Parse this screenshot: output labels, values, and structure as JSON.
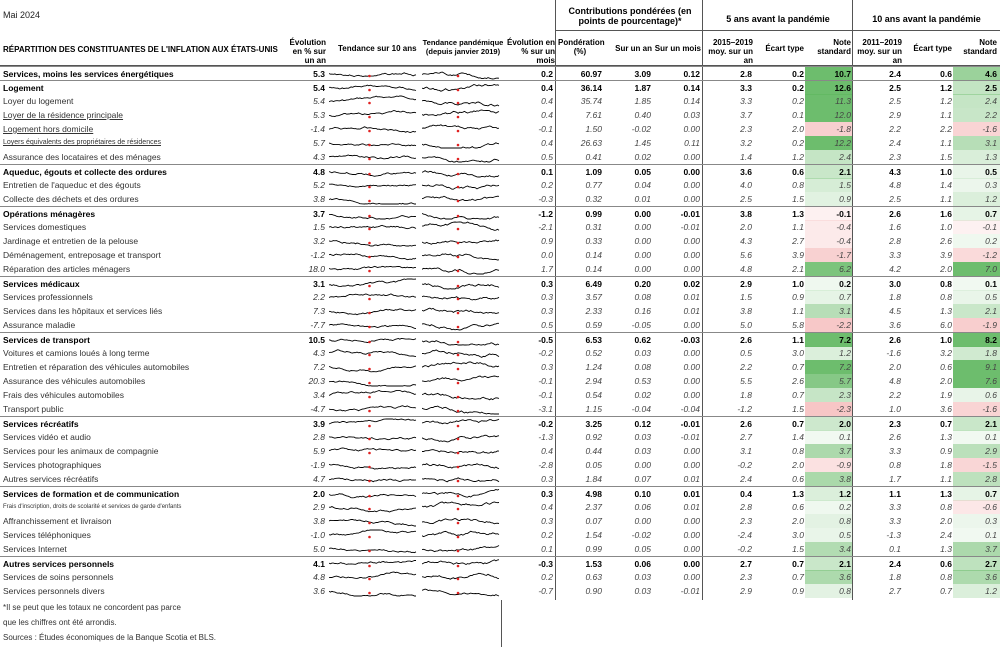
{
  "date_label": "Mai 2024",
  "headers": {
    "category": "RÉPARTITION DES CONSTITUANTES DE L'INFLATION AUX ÉTATS-UNIS",
    "evol_yoy": "Évolution en % sur un an",
    "trend10": "Tendance sur 10 ans",
    "trend_pandemic": "Tendance pandémique (depuis janvier 2019)",
    "evol_mom": "Évolution en % sur un mois",
    "contrib_group": "Contributions pondérées (en points de pourcentage)*",
    "weight": "Pondération (%)",
    "sur_un_an": "Sur un an",
    "sur_un_mois": "Sur un mois",
    "group5": "5 ans avant la pandémie",
    "avg5": "2015–2019 moy. sur un an",
    "std": "Écart type",
    "score": "Note standard",
    "group10": "10 ans avant la pandémie",
    "avg10": "2011–2019 moy. sur un an"
  },
  "colors": {
    "pos": "#62b862",
    "neg": "#e86060",
    "spark": "#000000",
    "spark_dot": "#e02020"
  },
  "rows": [
    {
      "label": "Services, moins les services énergétiques",
      "t": "major",
      "yoy": "5.3",
      "mom": "0.2",
      "w": "60.97",
      "cy": "3.09",
      "cm": "0.12",
      "a5": "2.8",
      "s5": "0.2",
      "n5": "10.7",
      "a10": "2.4",
      "s10": "0.6",
      "n10": "4.6",
      "z5": 10.7,
      "z10": 4.6
    },
    {
      "label": "Logement",
      "t": "major",
      "yoy": "5.4",
      "mom": "0.4",
      "w": "36.14",
      "cy": "1.87",
      "cm": "0.14",
      "a5": "3.3",
      "s5": "0.2",
      "n5": "12.6",
      "a10": "2.5",
      "s10": "1.2",
      "n10": "2.5",
      "z5": 12.6,
      "z10": 2.5
    },
    {
      "label": "Loyer du logement",
      "t": "sub",
      "yoy": "5.4",
      "mom": "0.4",
      "w": "35.74",
      "cy": "1.85",
      "cm": "0.14",
      "a5": "3.3",
      "s5": "0.2",
      "n5": "11.3",
      "a10": "2.5",
      "s10": "1.2",
      "n10": "2.4",
      "z5": 11.3,
      "z10": 2.4
    },
    {
      "label": "Loyer de la résidence principale",
      "t": "sub ul",
      "yoy": "5.3",
      "mom": "0.4",
      "w": "7.61",
      "cy": "0.40",
      "cm": "0.03",
      "a5": "3.7",
      "s5": "0.1",
      "n5": "12.0",
      "a10": "2.9",
      "s10": "1.1",
      "n10": "2.2",
      "z5": 12.0,
      "z10": 2.2
    },
    {
      "label": "Logement hors domicile",
      "t": "sub ul",
      "yoy": "-1.4",
      "mom": "-0.1",
      "w": "1.50",
      "cy": "-0.02",
      "cm": "0.00",
      "a5": "2.3",
      "s5": "2.0",
      "n5": "-1.8",
      "a10": "2.2",
      "s10": "2.2",
      "n10": "-1.6",
      "z5": -1.8,
      "z10": -1.6
    },
    {
      "label": "Loyers équivalents des propriétaires de résidences",
      "t": "sub ul small",
      "yoy": "5.7",
      "mom": "0.4",
      "w": "26.63",
      "cy": "1.45",
      "cm": "0.11",
      "a5": "3.2",
      "s5": "0.2",
      "n5": "12.2",
      "a10": "2.4",
      "s10": "1.1",
      "n10": "3.1",
      "z5": 12.2,
      "z10": 3.1
    },
    {
      "label": "Assurance des locataires et des ménages",
      "t": "sub",
      "yoy": "4.3",
      "mom": "0.5",
      "w": "0.41",
      "cy": "0.02",
      "cm": "0.00",
      "a5": "1.4",
      "s5": "1.2",
      "n5": "2.4",
      "a10": "2.3",
      "s10": "1.5",
      "n10": "1.3",
      "z5": 2.4,
      "z10": 1.3
    },
    {
      "label": "Aqueduc, égouts et collecte des ordures",
      "t": "major",
      "yoy": "4.8",
      "mom": "0.1",
      "w": "1.09",
      "cy": "0.05",
      "cm": "0.00",
      "a5": "3.6",
      "s5": "0.6",
      "n5": "2.1",
      "a10": "4.3",
      "s10": "1.0",
      "n10": "0.5",
      "z5": 2.1,
      "z10": 0.5
    },
    {
      "label": "Entretien de l'aqueduc et des égouts",
      "t": "sub",
      "yoy": "5.2",
      "mom": "0.2",
      "w": "0.77",
      "cy": "0.04",
      "cm": "0.00",
      "a5": "4.0",
      "s5": "0.8",
      "n5": "1.5",
      "a10": "4.8",
      "s10": "1.4",
      "n10": "0.3",
      "z5": 1.5,
      "z10": 0.3
    },
    {
      "label": "Collecte des déchets et des ordures",
      "t": "sub",
      "yoy": "3.8",
      "mom": "-0.3",
      "w": "0.32",
      "cy": "0.01",
      "cm": "0.00",
      "a5": "2.5",
      "s5": "1.5",
      "n5": "0.9",
      "a10": "2.5",
      "s10": "1.1",
      "n10": "1.2",
      "z5": 0.9,
      "z10": 1.2
    },
    {
      "label": "Opérations ménagères",
      "t": "major",
      "yoy": "3.7",
      "mom": "-1.2",
      "w": "0.99",
      "cy": "0.00",
      "cm": "-0.01",
      "a5": "3.8",
      "s5": "1.3",
      "n5": "-0.1",
      "a10": "2.6",
      "s10": "1.6",
      "n10": "0.7",
      "z5": -0.1,
      "z10": 0.7
    },
    {
      "label": "Services domestiques",
      "t": "sub",
      "yoy": "1.5",
      "mom": "-2.1",
      "w": "0.31",
      "cy": "0.00",
      "cm": "-0.01",
      "a5": "2.0",
      "s5": "1.1",
      "n5": "-0.4",
      "a10": "1.6",
      "s10": "1.0",
      "n10": "-0.1",
      "z5": -0.4,
      "z10": -0.1
    },
    {
      "label": "Jardinage et entretien de la pelouse",
      "t": "sub",
      "yoy": "3.2",
      "mom": "0.9",
      "w": "0.33",
      "cy": "0.00",
      "cm": "0.00",
      "a5": "4.3",
      "s5": "2.7",
      "n5": "-0.4",
      "a10": "2.8",
      "s10": "2.6",
      "n10": "0.2",
      "z5": -0.4,
      "z10": 0.2
    },
    {
      "label": "Déménagement, entreposage et transport",
      "t": "sub",
      "yoy": "-1.2",
      "mom": "0.0",
      "w": "0.14",
      "cy": "0.00",
      "cm": "0.00",
      "a5": "5.6",
      "s5": "3.9",
      "n5": "-1.7",
      "a10": "3.3",
      "s10": "3.9",
      "n10": "-1.2",
      "z5": -1.7,
      "z10": -1.2
    },
    {
      "label": "Réparation des articles ménagers",
      "t": "sub",
      "yoy": "18.0",
      "mom": "1.7",
      "w": "0.14",
      "cy": "0.00",
      "cm": "0.00",
      "a5": "4.8",
      "s5": "2.1",
      "n5": "6.2",
      "a10": "4.2",
      "s10": "2.0",
      "n10": "7.0",
      "z5": 6.2,
      "z10": 7.0
    },
    {
      "label": "Services médicaux",
      "t": "major",
      "yoy": "3.1",
      "mom": "0.3",
      "w": "6.49",
      "cy": "0.20",
      "cm": "0.02",
      "a5": "2.9",
      "s5": "1.0",
      "n5": "0.2",
      "a10": "3.0",
      "s10": "0.8",
      "n10": "0.1",
      "z5": 0.2,
      "z10": 0.1
    },
    {
      "label": "Services professionnels",
      "t": "sub",
      "yoy": "2.2",
      "mom": "0.3",
      "w": "3.57",
      "cy": "0.08",
      "cm": "0.01",
      "a5": "1.5",
      "s5": "0.9",
      "n5": "0.7",
      "a10": "1.8",
      "s10": "0.8",
      "n10": "0.5",
      "z5": 0.7,
      "z10": 0.5
    },
    {
      "label": "Services dans les hôpitaux et services liés",
      "t": "sub",
      "yoy": "7.3",
      "mom": "0.3",
      "w": "2.33",
      "cy": "0.16",
      "cm": "0.01",
      "a5": "3.8",
      "s5": "1.1",
      "n5": "3.1",
      "a10": "4.5",
      "s10": "1.3",
      "n10": "2.1",
      "z5": 3.1,
      "z10": 2.1
    },
    {
      "label": "Assurance maladie",
      "t": "sub",
      "yoy": "-7.7",
      "mom": "0.5",
      "w": "0.59",
      "cy": "-0.05",
      "cm": "0.00",
      "a5": "5.0",
      "s5": "5.8",
      "n5": "-2.2",
      "a10": "3.6",
      "s10": "6.0",
      "n10": "-1.9",
      "z5": -2.2,
      "z10": -1.9
    },
    {
      "label": "Services de transport",
      "t": "major",
      "yoy": "10.5",
      "mom": "-0.5",
      "w": "6.53",
      "cy": "0.62",
      "cm": "-0.03",
      "a5": "2.6",
      "s5": "1.1",
      "n5": "7.2",
      "a10": "2.6",
      "s10": "1.0",
      "n10": "8.2",
      "z5": 7.2,
      "z10": 8.2
    },
    {
      "label": "Voitures et camions loués à long terme",
      "t": "sub",
      "yoy": "4.3",
      "mom": "-0.2",
      "w": "0.52",
      "cy": "0.03",
      "cm": "0.00",
      "a5": "0.5",
      "s5": "3.0",
      "n5": "1.2",
      "a10": "-1.6",
      "s10": "3.2",
      "n10": "1.8",
      "z5": 1.2,
      "z10": 1.8
    },
    {
      "label": "Entretien et réparation des véhicules automobiles",
      "t": "sub",
      "yoy": "7.2",
      "mom": "0.3",
      "w": "1.24",
      "cy": "0.08",
      "cm": "0.00",
      "a5": "2.2",
      "s5": "0.7",
      "n5": "7.2",
      "a10": "2.0",
      "s10": "0.6",
      "n10": "9.1",
      "z5": 7.2,
      "z10": 9.1
    },
    {
      "label": "Assurance des véhicules automobiles",
      "t": "sub",
      "yoy": "20.3",
      "mom": "-0.1",
      "w": "2.94",
      "cy": "0.53",
      "cm": "0.00",
      "a5": "5.5",
      "s5": "2.6",
      "n5": "5.7",
      "a10": "4.8",
      "s10": "2.0",
      "n10": "7.6",
      "z5": 5.7,
      "z10": 7.6
    },
    {
      "label": "Frais des véhicules automobiles",
      "t": "sub",
      "yoy": "3.4",
      "mom": "-0.1",
      "w": "0.54",
      "cy": "0.02",
      "cm": "0.00",
      "a5": "1.8",
      "s5": "0.7",
      "n5": "2.3",
      "a10": "2.2",
      "s10": "1.9",
      "n10": "0.6",
      "z5": 2.3,
      "z10": 0.6
    },
    {
      "label": "Transport public",
      "t": "sub",
      "yoy": "-4.7",
      "mom": "-3.1",
      "w": "1.15",
      "cy": "-0.04",
      "cm": "-0.04",
      "a5": "-1.2",
      "s5": "1.5",
      "n5": "-2.3",
      "a10": "1.0",
      "s10": "3.6",
      "n10": "-1.6",
      "z5": -2.3,
      "z10": -1.6
    },
    {
      "label": "Services récréatifs",
      "t": "major",
      "yoy": "3.9",
      "mom": "-0.2",
      "w": "3.25",
      "cy": "0.12",
      "cm": "-0.01",
      "a5": "2.6",
      "s5": "0.7",
      "n5": "2.0",
      "a10": "2.3",
      "s10": "0.7",
      "n10": "2.1",
      "z5": 2.0,
      "z10": 2.1
    },
    {
      "label": "Services vidéo et audio",
      "t": "sub",
      "yoy": "2.8",
      "mom": "-1.3",
      "w": "0.92",
      "cy": "0.03",
      "cm": "-0.01",
      "a5": "2.7",
      "s5": "1.4",
      "n5": "0.1",
      "a10": "2.6",
      "s10": "1.3",
      "n10": "0.1",
      "z5": 0.1,
      "z10": 0.1
    },
    {
      "label": "Services pour les animaux de compagnie",
      "t": "sub",
      "yoy": "5.9",
      "mom": "0.4",
      "w": "0.44",
      "cy": "0.03",
      "cm": "0.00",
      "a5": "3.1",
      "s5": "0.8",
      "n5": "3.7",
      "a10": "3.3",
      "s10": "0.9",
      "n10": "2.9",
      "z5": 3.7,
      "z10": 2.9
    },
    {
      "label": "Services photographiques",
      "t": "sub",
      "yoy": "-1.9",
      "mom": "-2.8",
      "w": "0.05",
      "cy": "0.00",
      "cm": "0.00",
      "a5": "-0.2",
      "s5": "2.0",
      "n5": "-0.9",
      "a10": "0.8",
      "s10": "1.8",
      "n10": "-1.5",
      "z5": -0.9,
      "z10": -1.5
    },
    {
      "label": "Autres services récréatifs",
      "t": "sub",
      "yoy": "4.7",
      "mom": "0.3",
      "w": "1.84",
      "cy": "0.07",
      "cm": "0.01",
      "a5": "2.4",
      "s5": "0.6",
      "n5": "3.8",
      "a10": "1.7",
      "s10": "1.1",
      "n10": "2.8",
      "z5": 3.8,
      "z10": 2.8
    },
    {
      "label": "Services de formation et de communication",
      "t": "major",
      "yoy": "2.0",
      "mom": "0.3",
      "w": "4.98",
      "cy": "0.10",
      "cm": "0.01",
      "a5": "0.4",
      "s5": "1.3",
      "n5": "1.2",
      "a10": "1.1",
      "s10": "1.3",
      "n10": "0.7",
      "z5": 1.2,
      "z10": 0.7
    },
    {
      "label": "Frais d'inscription, droits de scolarité et services de garde d'enfants",
      "t": "sub tiny",
      "yoy": "2.9",
      "mom": "0.4",
      "w": "2.37",
      "cy": "0.06",
      "cm": "0.01",
      "a5": "2.8",
      "s5": "0.6",
      "n5": "0.2",
      "a10": "3.3",
      "s10": "0.8",
      "n10": "-0.6",
      "z5": 0.2,
      "z10": -0.6
    },
    {
      "label": "Affranchissement et livraison",
      "t": "sub",
      "yoy": "3.8",
      "mom": "0.3",
      "w": "0.07",
      "cy": "0.00",
      "cm": "0.00",
      "a5": "2.3",
      "s5": "2.0",
      "n5": "0.8",
      "a10": "3.3",
      "s10": "2.0",
      "n10": "0.3",
      "z5": 0.8,
      "z10": 0.3
    },
    {
      "label": "Services téléphoniques",
      "t": "sub",
      "yoy": "-1.0",
      "mom": "0.2",
      "w": "1.54",
      "cy": "-0.02",
      "cm": "0.00",
      "a5": "-2.4",
      "s5": "3.0",
      "n5": "0.5",
      "a10": "-1.3",
      "s10": "2.4",
      "n10": "0.1",
      "z5": 0.5,
      "z10": 0.1
    },
    {
      "label": "Services Internet",
      "t": "sub",
      "yoy": "5.0",
      "mom": "0.1",
      "w": "0.99",
      "cy": "0.05",
      "cm": "0.00",
      "a5": "-0.2",
      "s5": "1.5",
      "n5": "3.4",
      "a10": "0.1",
      "s10": "1.3",
      "n10": "3.7",
      "z5": 3.4,
      "z10": 3.7
    },
    {
      "label": "Autres services personnels",
      "t": "major",
      "yoy": "4.1",
      "mom": "-0.3",
      "w": "1.53",
      "cy": "0.06",
      "cm": "0.00",
      "a5": "2.7",
      "s5": "0.7",
      "n5": "2.1",
      "a10": "2.4",
      "s10": "0.6",
      "n10": "2.7",
      "z5": 2.1,
      "z10": 2.7
    },
    {
      "label": "Services de soins personnels",
      "t": "sub",
      "yoy": "4.8",
      "mom": "0.2",
      "w": "0.63",
      "cy": "0.03",
      "cm": "0.00",
      "a5": "2.3",
      "s5": "0.7",
      "n5": "3.6",
      "a10": "1.8",
      "s10": "0.8",
      "n10": "3.6",
      "z5": 3.6,
      "z10": 3.6
    },
    {
      "label": "Services personnels divers",
      "t": "sub",
      "yoy": "3.6",
      "mom": "-0.7",
      "w": "0.90",
      "cy": "0.03",
      "cm": "-0.01",
      "a5": "2.9",
      "s5": "0.9",
      "n5": "0.8",
      "a10": "2.7",
      "s10": "0.7",
      "n10": "1.2",
      "z5": 0.8,
      "z10": 1.2
    }
  ],
  "footnotes": [
    "*Il se peut que les totaux ne concordent pas parce",
    "que les chiffres ont été arrondis.",
    "Sources : Études économiques de la Banque Scotia et BLS."
  ]
}
